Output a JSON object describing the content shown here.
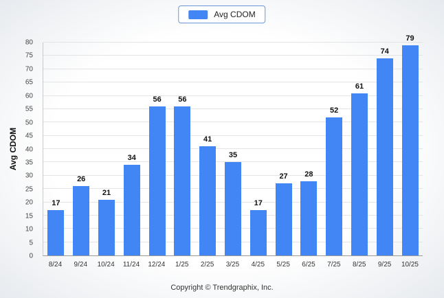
{
  "page": {
    "footer": "Copyright © Trendgraphix, Inc."
  },
  "legend": {
    "items": [
      {
        "label": "Avg CDOM",
        "color": "#4285f4"
      }
    ]
  },
  "chart_data": {
    "type": "bar",
    "title": "",
    "xlabel": "",
    "ylabel": "Avg CDOM",
    "categories": [
      "8/24",
      "9/24",
      "10/24",
      "11/24",
      "12/24",
      "1/25",
      "2/25",
      "3/25",
      "4/25",
      "5/25",
      "6/25",
      "7/25",
      "8/25",
      "9/25",
      "10/25"
    ],
    "series": [
      {
        "name": "Avg CDOM",
        "color": "#4285f4",
        "values": [
          17,
          26,
          21,
          34,
          56,
          56,
          41,
          35,
          17,
          27,
          28,
          52,
          61,
          74,
          79
        ]
      }
    ],
    "ylim": [
      0,
      80
    ],
    "y_ticks": [
      0,
      5,
      10,
      15,
      20,
      25,
      30,
      35,
      40,
      45,
      50,
      55,
      60,
      65,
      70,
      75,
      80
    ],
    "grid": true,
    "legend_position": "top",
    "value_labels": true
  },
  "colors": {
    "bar": "#4285f4",
    "legend_border": "#6d96d8",
    "gridline": "#e4e4e4",
    "axis": "#9a9a9a",
    "text": "#333333"
  }
}
